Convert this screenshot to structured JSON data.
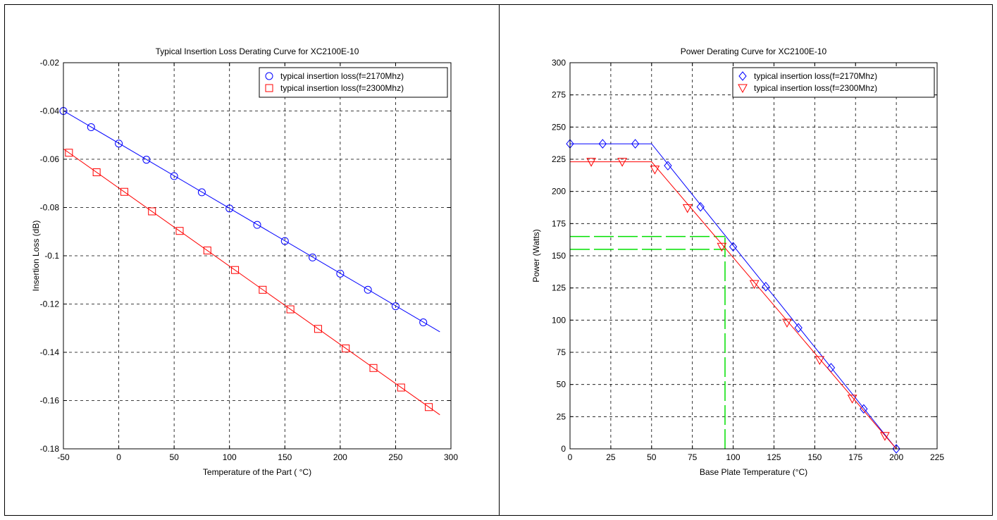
{
  "chart_data": [
    {
      "type": "line",
      "title": "Typical Insertion Loss Derating Curve for XC2100E-10",
      "xlabel": "Temperature of the Part ( °C)",
      "ylabel": "Insertion Loss (dB)",
      "xlim": [
        -50,
        300
      ],
      "ylim": [
        -0.18,
        -0.02
      ],
      "xticks": [
        -50,
        0,
        50,
        100,
        150,
        200,
        250,
        300
      ],
      "xtick_labels": [
        "-50",
        "0",
        "50",
        "100",
        "150",
        "200",
        "250",
        "300"
      ],
      "yticks": [
        -0.18,
        -0.16,
        -0.14,
        -0.12,
        -0.1,
        -0.08,
        -0.06,
        -0.04,
        -0.02
      ],
      "ytick_labels": [
        "-0.18",
        "-0.16",
        "-0.14",
        "-0.12",
        "-0.1",
        "-0.08",
        "-0.06",
        "-0.04",
        "-0.02"
      ],
      "grid": true,
      "legend_position": "top-right",
      "series": [
        {
          "name": "typical insertion loss(f=2170Mhz)",
          "color": "#0000ff",
          "marker": "circle",
          "line": [
            [
              -50,
              -0.0399
            ],
            [
              290,
              -0.1315
            ]
          ],
          "x": [
            -50,
            -25,
            0,
            25,
            50,
            75,
            100,
            125,
            150,
            175,
            200,
            225,
            250,
            275
          ],
          "y": [
            -0.04,
            -0.0467,
            -0.0535,
            -0.0602,
            -0.067,
            -0.0737,
            -0.0804,
            -0.0872,
            -0.0939,
            -0.1007,
            -0.1074,
            -0.1141,
            -0.1209,
            -0.1276
          ]
        },
        {
          "name": "typical insertion loss(f=2300Mhz)",
          "color": "#ff0000",
          "marker": "square",
          "line": [
            [
              -50,
              -0.0557
            ],
            [
              290,
              -0.1659
            ]
          ],
          "x": [
            -45,
            -20,
            5,
            30,
            55,
            80,
            105,
            130,
            155,
            180,
            205,
            230,
            255,
            280
          ],
          "y": [
            -0.0573,
            -0.0654,
            -0.0735,
            -0.0816,
            -0.0897,
            -0.0978,
            -0.1059,
            -0.1141,
            -0.1222,
            -0.1303,
            -0.1384,
            -0.1465,
            -0.1546,
            -0.1627
          ]
        }
      ]
    },
    {
      "type": "line",
      "title": "Power Derating Curve for XC2100E-10",
      "xlabel": "Base Plate Temperature (°C)",
      "ylabel": "Power (Watts)",
      "xlim": [
        0,
        225
      ],
      "ylim": [
        0,
        300
      ],
      "xticks": [
        0,
        25,
        50,
        75,
        100,
        125,
        150,
        175,
        200,
        225
      ],
      "xtick_labels": [
        "0",
        "25",
        "50",
        "75",
        "100",
        "125",
        "150",
        "175",
        "200",
        "225"
      ],
      "yticks": [
        0,
        25,
        50,
        75,
        100,
        125,
        150,
        175,
        200,
        225,
        250,
        275,
        300
      ],
      "ytick_labels": [
        "0",
        "25",
        "50",
        "75",
        "100",
        "125",
        "150",
        "175",
        "200",
        "225",
        "250",
        "275",
        "300"
      ],
      "grid": true,
      "legend_position": "top-right",
      "series": [
        {
          "name": "typical insertion loss(f=2170Mhz)",
          "color": "#0000ff",
          "marker": "diamond",
          "line": [
            [
              0,
              237
            ],
            [
              50,
              237
            ],
            [
              200,
              0
            ]
          ],
          "x": [
            0,
            20,
            40,
            60,
            80,
            100,
            120,
            140,
            160,
            180,
            200
          ],
          "y": [
            237,
            237,
            237,
            220,
            188,
            157,
            126,
            94,
            63,
            31,
            0
          ]
        },
        {
          "name": "typical insertion loss(f=2300Mhz)",
          "color": "#ff0000",
          "marker": "triangle-down",
          "line": [
            [
              0,
              223
            ],
            [
              50,
              223
            ],
            [
              200,
              0
            ]
          ],
          "x": [
            13,
            32,
            52,
            72,
            93,
            113,
            133,
            153,
            173,
            193
          ],
          "y": [
            223,
            223,
            217,
            187,
            157,
            128,
            98,
            69,
            39,
            10
          ]
        }
      ],
      "reference_lines": {
        "color": "#00e000",
        "horizontal": [
          [
            0,
            95,
            165
          ],
          [
            0,
            95,
            155
          ]
        ],
        "vertical": [
          [
            95,
            0,
            165
          ]
        ]
      }
    }
  ]
}
